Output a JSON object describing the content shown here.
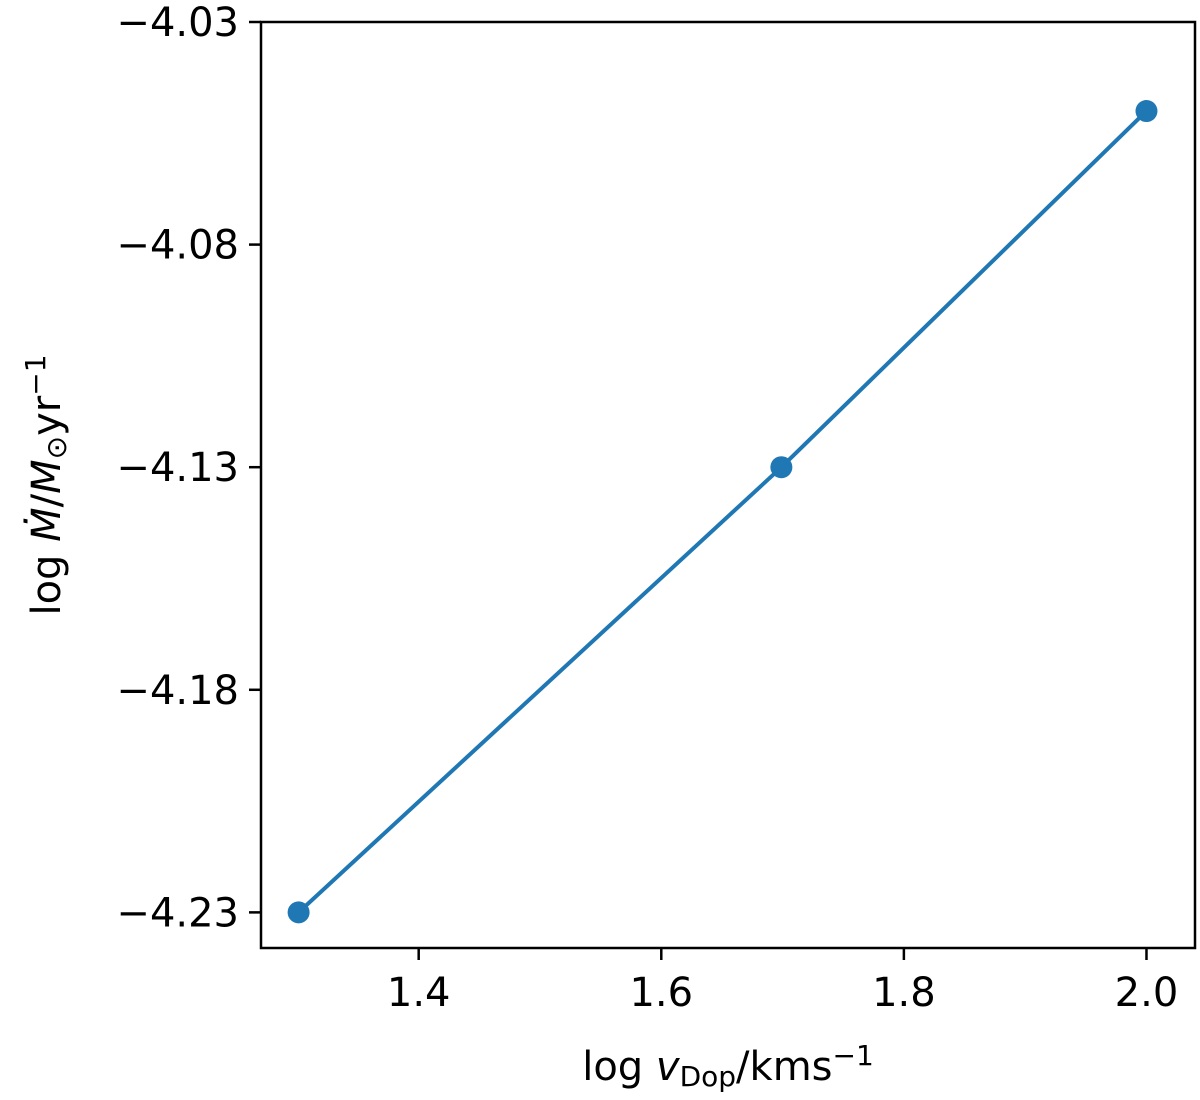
{
  "chart_data": {
    "type": "line",
    "title": "",
    "xlabel": {
      "parts": [
        {
          "text": "log ",
          "style": "normal"
        },
        {
          "text": "v",
          "style": "italic"
        },
        {
          "text": "Dop",
          "style": "sub"
        },
        {
          "text": "/kms",
          "style": "normal"
        },
        {
          "text": "−1",
          "style": "sup"
        }
      ]
    },
    "ylabel": {
      "parts": [
        {
          "text": "log ",
          "style": "normal"
        },
        {
          "text": "Ṁ",
          "style": "italic"
        },
        {
          "text": "/",
          "style": "normal"
        },
        {
          "text": "M",
          "style": "italic"
        },
        {
          "text": "⊙",
          "style": "sub"
        },
        {
          "text": "yr",
          "style": "normal"
        },
        {
          "text": "−1",
          "style": "sup"
        }
      ]
    },
    "xlim": [
      1.27,
      2.04
    ],
    "ylim": [
      -4.238,
      -4.03
    ],
    "xticks": [
      1.4,
      1.6,
      1.8,
      2.0
    ],
    "xtick_labels": [
      "1.4",
      "1.6",
      "1.8",
      "2.0"
    ],
    "yticks": [
      -4.03,
      -4.08,
      -4.13,
      -4.18,
      -4.23
    ],
    "ytick_labels": [
      "−4.03",
      "−4.08",
      "−4.13",
      "−4.18",
      "−4.23"
    ],
    "grid": false,
    "series": [
      {
        "color": "#1f77b4",
        "marker": "circle",
        "x": [
          1.301,
          1.699,
          2.0
        ],
        "y": [
          -4.23,
          -4.13,
          -4.05
        ]
      }
    ]
  }
}
